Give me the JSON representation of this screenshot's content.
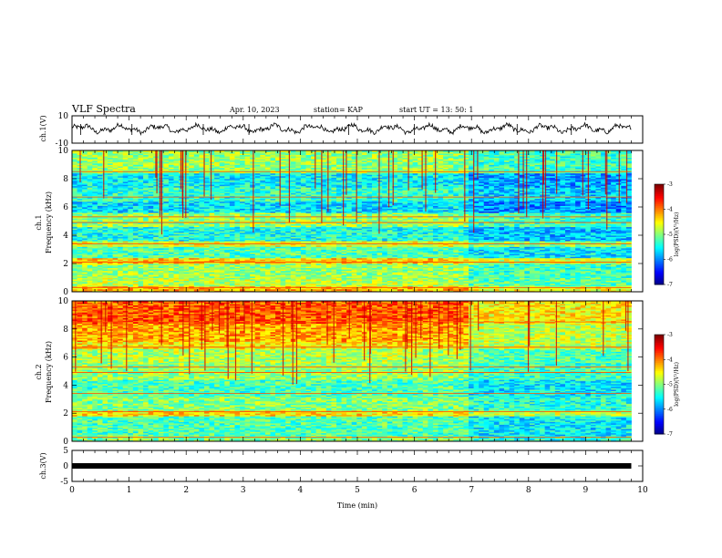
{
  "header": {
    "title": "VLF Spectra",
    "date": "Apr. 10, 2023",
    "station": "station= KAP",
    "start": "start  UT  =   13: 50: 1"
  },
  "chart_data": [
    {
      "type": "line",
      "id": "ch1-waveform",
      "ylabel": "ch.1(V)",
      "ylim": [
        -10,
        10
      ],
      "yticks": [
        "10",
        "-10"
      ],
      "xlim": [
        0,
        10
      ],
      "series": [
        {
          "description": "waveform envelope oscillating roughly between about -3 and 4 V over 0–9.8 min",
          "mean": 0.5,
          "amplitude": 3.5
        }
      ]
    },
    {
      "type": "heatmap",
      "id": "ch1-spectrogram",
      "ylabel": "ch.1\nFrequency (kHz)",
      "ylabel_lines": [
        "ch.1",
        "Frequency (kHz)"
      ],
      "ylim": [
        0,
        10
      ],
      "yticks": [
        "0",
        "2",
        "4",
        "6",
        "8",
        "10"
      ],
      "xlim": [
        0,
        10
      ],
      "data_end_min": 9.8,
      "colorbar": {
        "label": "log(PSD)(V²/Hz)",
        "range": [
          -7,
          -3
        ],
        "ticks": [
          "-3",
          "-4",
          "-5",
          "-6",
          "-7"
        ]
      },
      "bands_kHz": [
        {
          "f0": 0.0,
          "f1": 0.4,
          "level": -4.2
        },
        {
          "f0": 0.4,
          "f1": 1.0,
          "level": -4.8
        },
        {
          "f0": 1.0,
          "f1": 2.0,
          "level": -4.9
        },
        {
          "f0": 2.0,
          "f1": 2.4,
          "level": -4.3
        },
        {
          "f0": 2.4,
          "f1": 3.2,
          "level": -5.2
        },
        {
          "f0": 3.2,
          "f1": 3.6,
          "level": -4.6
        },
        {
          "f0": 3.6,
          "f1": 4.6,
          "level": -5.4
        },
        {
          "f0": 4.6,
          "f1": 5.6,
          "level": -4.9
        },
        {
          "f0": 5.6,
          "f1": 6.4,
          "level": -5.6
        },
        {
          "f0": 6.4,
          "f1": 7.4,
          "level": -5.3
        },
        {
          "f0": 7.4,
          "f1": 8.4,
          "level": -5.5
        },
        {
          "f0": 8.4,
          "f1": 10.0,
          "level": -4.9
        }
      ]
    },
    {
      "type": "heatmap",
      "id": "ch2-spectrogram",
      "ylabel": "ch.2\nFrequency (kHz)",
      "ylabel_lines": [
        "ch.2",
        "Frequency (kHz)"
      ],
      "ylim": [
        0,
        10
      ],
      "yticks": [
        "0",
        "2",
        "4",
        "6",
        "8",
        "10"
      ],
      "xlim": [
        0,
        10
      ],
      "data_end_min": 9.8,
      "colorbar": {
        "label": "log(PSD)(V²/Hz)",
        "range": [
          -7,
          -3
        ],
        "ticks": [
          "-3",
          "-4",
          "-5",
          "-6",
          "-7"
        ]
      },
      "bands_kHz": [
        {
          "f0": 0.0,
          "f1": 0.4,
          "level": -5.0
        },
        {
          "f0": 0.4,
          "f1": 1.8,
          "level": -5.2
        },
        {
          "f0": 1.8,
          "f1": 2.2,
          "level": -4.4
        },
        {
          "f0": 2.2,
          "f1": 3.2,
          "level": -5.0
        },
        {
          "f0": 3.2,
          "f1": 4.4,
          "level": -5.2
        },
        {
          "f0": 4.4,
          "f1": 5.6,
          "level": -4.9
        },
        {
          "f0": 5.6,
          "f1": 6.6,
          "level": -4.8
        },
        {
          "f0": 6.6,
          "f1": 8.4,
          "level": -4.4
        },
        {
          "f0": 8.4,
          "f1": 10.0,
          "level": -4.1
        }
      ]
    },
    {
      "type": "line",
      "id": "ch3-waveform",
      "ylabel": "ch.3(V)",
      "ylim": [
        -5,
        5
      ],
      "yticks": [
        "5",
        "0",
        "-5"
      ],
      "xlim": [
        0,
        10
      ],
      "xticks": [
        "0",
        "1",
        "2",
        "3",
        "4",
        "5",
        "6",
        "7",
        "8",
        "9",
        "10"
      ],
      "xlabel": "Time (min)",
      "series": [
        {
          "description": "flat signal near 0 V from 0 to 9.8 min",
          "value": 0
        }
      ]
    }
  ]
}
